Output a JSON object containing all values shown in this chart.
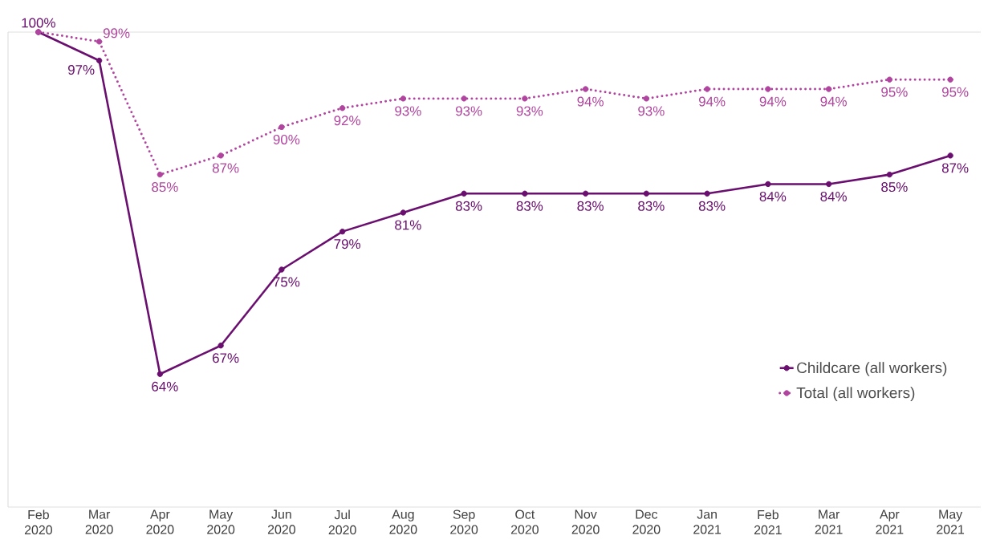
{
  "chart_data": {
    "type": "line",
    "categories": [
      "Feb 2020",
      "Mar 2020",
      "Apr 2020",
      "May 2020",
      "Jun 2020",
      "Jul 2020",
      "Aug 2020",
      "Sep 2020",
      "Oct 2020",
      "Nov 2020",
      "Dec 2020",
      "Jan 2021",
      "Feb 2021",
      "Mar 2021",
      "Apr 2021",
      "May 2021"
    ],
    "series": [
      {
        "name": "Childcare (all workers)",
        "color": "#6a0f6f",
        "line_style": "solid",
        "values": [
          100,
          97,
          64,
          67,
          75,
          79,
          81,
          83,
          83,
          83,
          83,
          83,
          84,
          84,
          85,
          87
        ],
        "value_labels": [
          "100%",
          "97%",
          "64%",
          "67%",
          "75%",
          "79%",
          "81%",
          "83%",
          "83%",
          "83%",
          "83%",
          "83%",
          "84%",
          "84%",
          "85%",
          "87%"
        ]
      },
      {
        "name": "Total (all workers)",
        "color": "#b0449e",
        "line_style": "dotted",
        "values": [
          100,
          99,
          85,
          87,
          90,
          92,
          93,
          93,
          93,
          94,
          93,
          94,
          94,
          94,
          95,
          95
        ],
        "value_labels": [
          null,
          "99%",
          "85%",
          "87%",
          "90%",
          "92%",
          "93%",
          "93%",
          "93%",
          "94%",
          "93%",
          "94%",
          "94%",
          "94%",
          "95%",
          "95%"
        ]
      }
    ],
    "ylim": [
      50,
      100
    ],
    "tick_labels": "x",
    "marker": "circle",
    "legend": "bottom right"
  }
}
